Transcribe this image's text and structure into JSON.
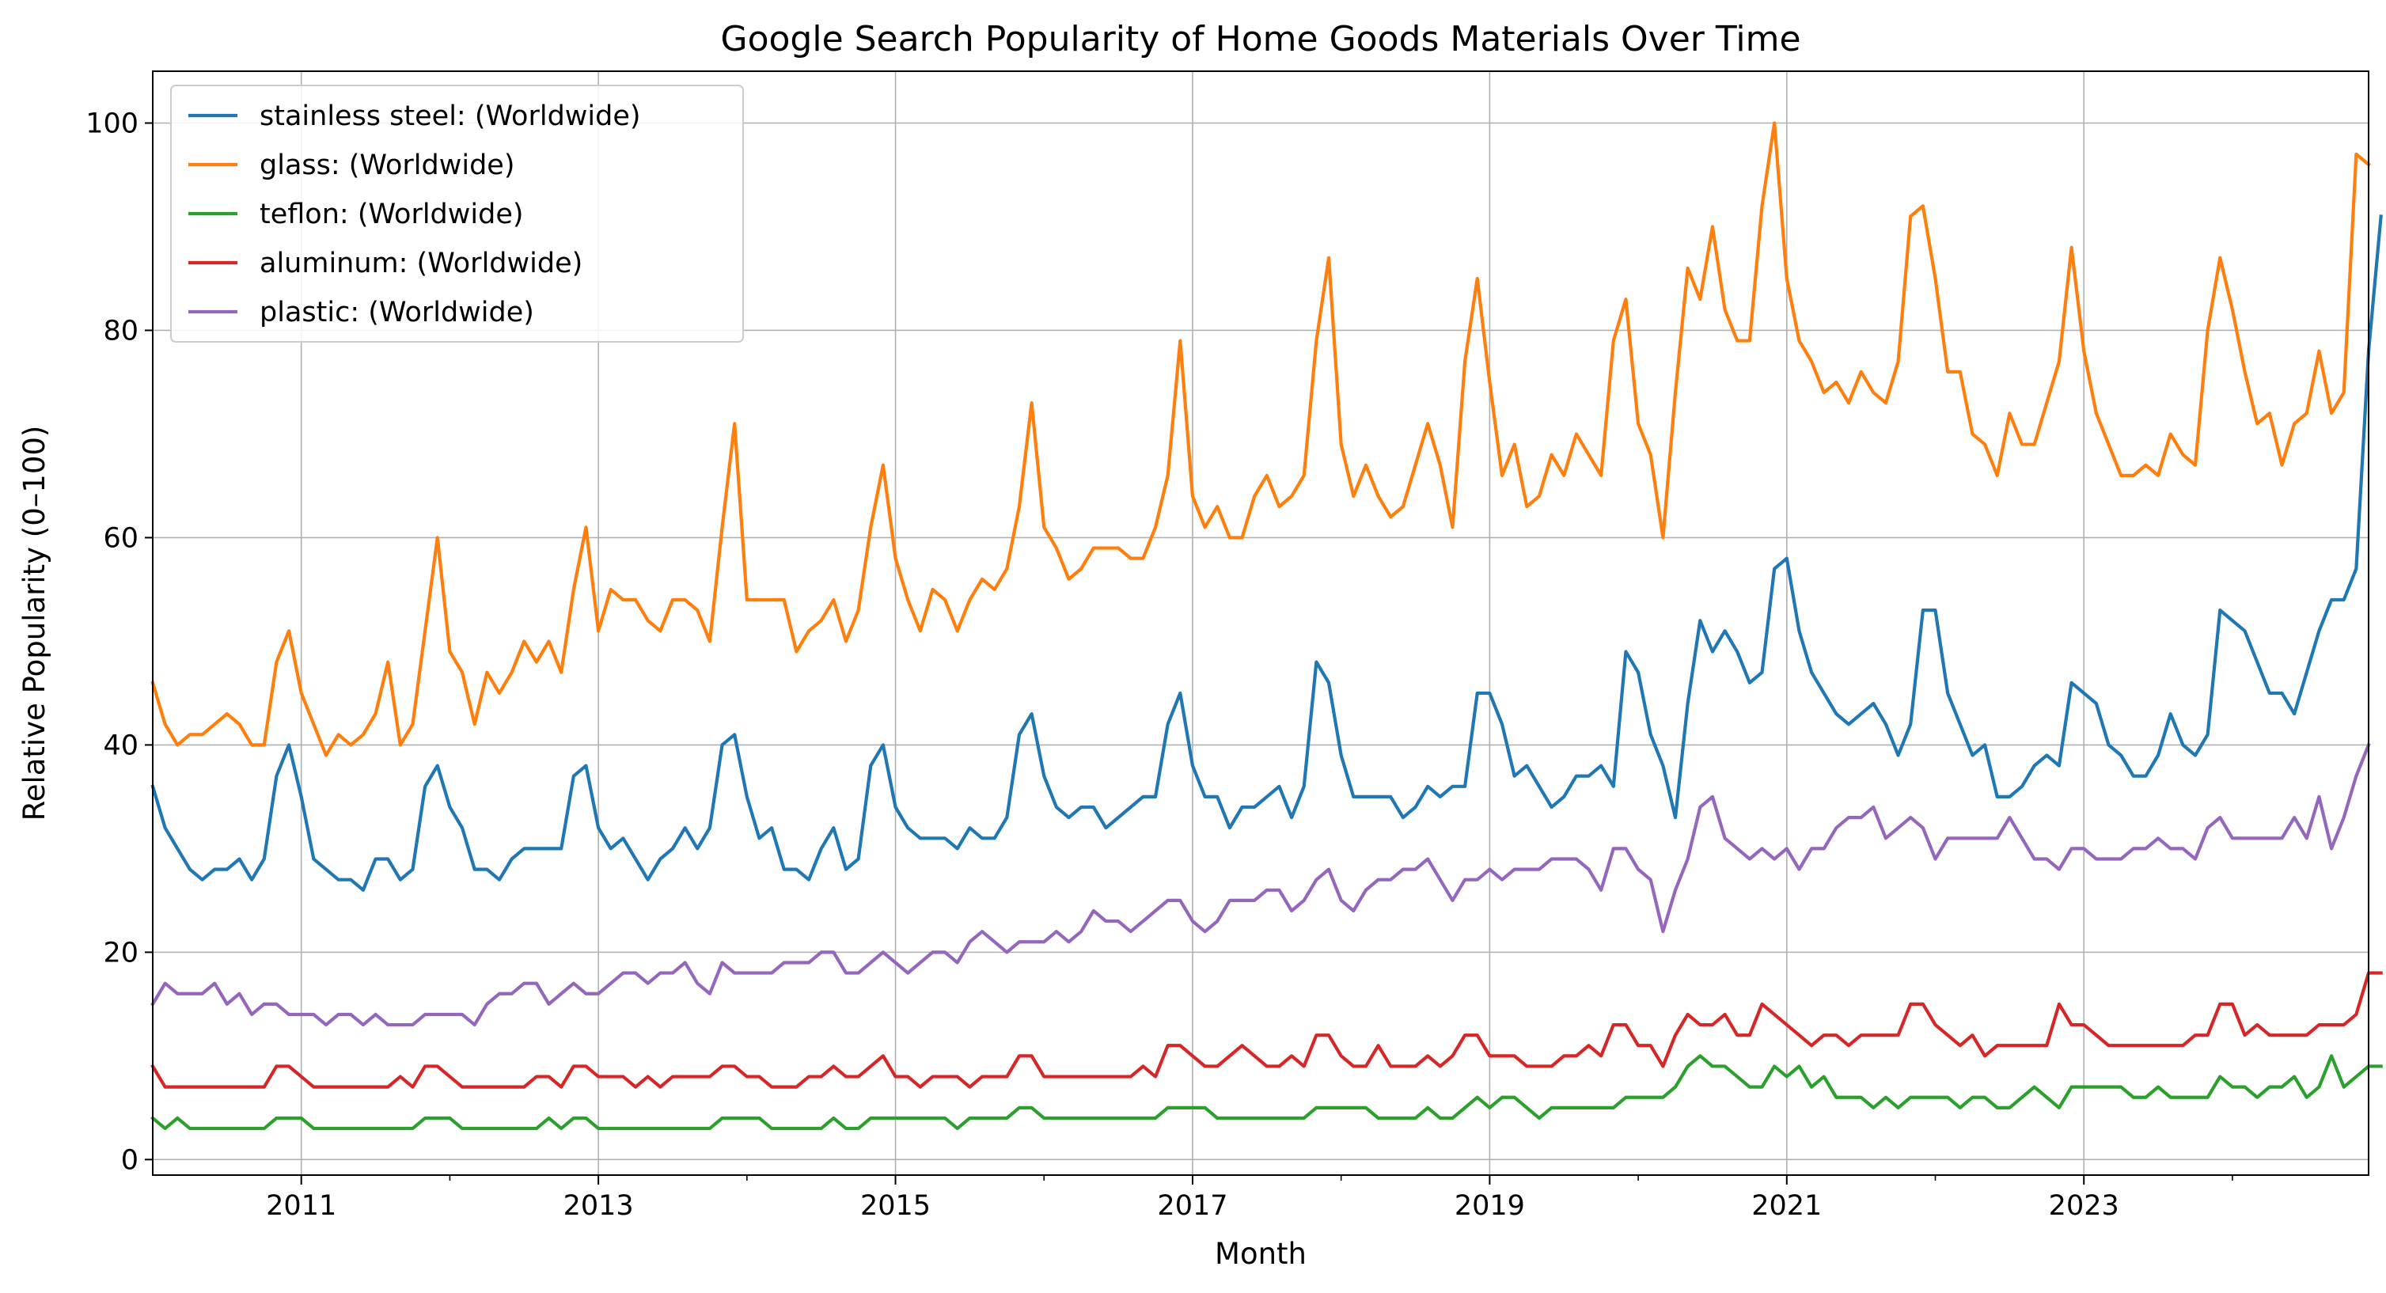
{
  "chart_data": {
    "type": "line",
    "title": "Google Search Popularity of Home Goods Materials Over Time",
    "xlabel": "Month",
    "ylabel": "Relative Popularity (0–100)",
    "xlim": [
      "2010-01",
      "2024-12"
    ],
    "ylim": [
      -1.5,
      105
    ],
    "grid": true,
    "legend_position": "upper-left",
    "x_ticks": [
      {
        "date": "2011-01",
        "label": "2011"
      },
      {
        "date": "2013-01",
        "label": "2013"
      },
      {
        "date": "2015-01",
        "label": "2015"
      },
      {
        "date": "2017-01",
        "label": "2017"
      },
      {
        "date": "2019-01",
        "label": "2019"
      },
      {
        "date": "2021-01",
        "label": "2021"
      },
      {
        "date": "2023-01",
        "label": "2023"
      }
    ],
    "x_minor_ticks": [
      "2012-01",
      "2014-01",
      "2016-01",
      "2018-01",
      "2020-01",
      "2022-01",
      "2024-01"
    ],
    "y_ticks": [
      0,
      20,
      40,
      60,
      80,
      100
    ],
    "x_start": "2010-01",
    "series": [
      {
        "name": "stainless steel: (Worldwide)",
        "color": "#1f77b4",
        "values": [
          36,
          32,
          30,
          28,
          27,
          28,
          28,
          29,
          27,
          29,
          37,
          40,
          35,
          29,
          28,
          27,
          27,
          26,
          29,
          29,
          27,
          28,
          36,
          38,
          34,
          32,
          28,
          28,
          27,
          29,
          30,
          30,
          30,
          30,
          37,
          38,
          32,
          30,
          31,
          29,
          27,
          29,
          30,
          32,
          30,
          32,
          40,
          41,
          35,
          31,
          32,
          28,
          28,
          27,
          30,
          32,
          28,
          29,
          38,
          40,
          34,
          32,
          31,
          31,
          31,
          30,
          32,
          31,
          31,
          33,
          41,
          43,
          37,
          34,
          33,
          34,
          34,
          32,
          33,
          34,
          35,
          35,
          42,
          45,
          38,
          35,
          35,
          32,
          34,
          34,
          35,
          36,
          33,
          36,
          48,
          46,
          39,
          35,
          35,
          35,
          35,
          33,
          34,
          36,
          35,
          36,
          36,
          45,
          45,
          42,
          37,
          38,
          36,
          34,
          35,
          37,
          37,
          38,
          36,
          49,
          47,
          41,
          38,
          33,
          44,
          52,
          49,
          51,
          49,
          46,
          47,
          57,
          58,
          51,
          47,
          45,
          43,
          42,
          43,
          44,
          42,
          39,
          42,
          53,
          53,
          45,
          42,
          39,
          40,
          35,
          35,
          36,
          38,
          39,
          38,
          46,
          45,
          44,
          40,
          39,
          37,
          37,
          39,
          43,
          40,
          39,
          41,
          53,
          52,
          51,
          48,
          45,
          45,
          43,
          47,
          51,
          54,
          54,
          57,
          78,
          91
        ]
      },
      {
        "name": "glass: (Worldwide)",
        "color": "#ff7f0e",
        "values": [
          46,
          42,
          40,
          41,
          41,
          42,
          43,
          42,
          40,
          40,
          48,
          51,
          45,
          42,
          39,
          41,
          40,
          41,
          43,
          48,
          40,
          42,
          51,
          60,
          49,
          47,
          42,
          47,
          45,
          47,
          50,
          48,
          50,
          47,
          55,
          61,
          51,
          55,
          54,
          54,
          52,
          51,
          54,
          54,
          53,
          50,
          61,
          71,
          54,
          54,
          54,
          54,
          49,
          51,
          52,
          54,
          50,
          53,
          61,
          67,
          58,
          54,
          51,
          55,
          54,
          51,
          54,
          56,
          55,
          57,
          63,
          73,
          61,
          59,
          56,
          57,
          59,
          59,
          59,
          58,
          58,
          61,
          66,
          79,
          64,
          61,
          63,
          60,
          60,
          64,
          66,
          63,
          64,
          66,
          79,
          87,
          69,
          64,
          67,
          64,
          62,
          63,
          67,
          71,
          67,
          61,
          77,
          85,
          75,
          66,
          69,
          63,
          64,
          68,
          66,
          70,
          68,
          66,
          79,
          83,
          71,
          68,
          60,
          74,
          86,
          83,
          90,
          82,
          79,
          79,
          92,
          100,
          85,
          79,
          77,
          74,
          75,
          73,
          76,
          74,
          73,
          77,
          91,
          92,
          85,
          76,
          76,
          70,
          69,
          66,
          72,
          69,
          69,
          73,
          77,
          88,
          78,
          72,
          69,
          66,
          66,
          67,
          66,
          70,
          68,
          67,
          80,
          87,
          82,
          76,
          71,
          72,
          67,
          71,
          72,
          78,
          72,
          74,
          97,
          96
        ]
      },
      {
        "name": "teflon: (Worldwide)",
        "color": "#2ca02c",
        "values": [
          4,
          3,
          4,
          3,
          3,
          3,
          3,
          3,
          3,
          3,
          4,
          4,
          4,
          3,
          3,
          3,
          3,
          3,
          3,
          3,
          3,
          3,
          4,
          4,
          4,
          3,
          3,
          3,
          3,
          3,
          3,
          3,
          4,
          3,
          4,
          4,
          3,
          3,
          3,
          3,
          3,
          3,
          3,
          3,
          3,
          3,
          4,
          4,
          4,
          4,
          3,
          3,
          3,
          3,
          3,
          4,
          3,
          3,
          4,
          4,
          4,
          4,
          4,
          4,
          4,
          3,
          4,
          4,
          4,
          4,
          5,
          5,
          4,
          4,
          4,
          4,
          4,
          4,
          4,
          4,
          4,
          4,
          5,
          5,
          5,
          5,
          4,
          4,
          4,
          4,
          4,
          4,
          4,
          4,
          5,
          5,
          5,
          5,
          5,
          4,
          4,
          4,
          4,
          5,
          4,
          4,
          5,
          6,
          5,
          6,
          6,
          5,
          4,
          5,
          5,
          5,
          5,
          5,
          5,
          6,
          6,
          6,
          6,
          7,
          9,
          10,
          9,
          9,
          8,
          7,
          7,
          9,
          8,
          9,
          7,
          8,
          6,
          6,
          6,
          5,
          6,
          5,
          6,
          6,
          6,
          6,
          5,
          6,
          6,
          5,
          5,
          6,
          7,
          6,
          5,
          7,
          7,
          7,
          7,
          7,
          6,
          6,
          7,
          6,
          6,
          6,
          6,
          8,
          7,
          7,
          6,
          7,
          7,
          8,
          6,
          7,
          10,
          7,
          8,
          9,
          9
        ]
      },
      {
        "name": "aluminum: (Worldwide)",
        "color": "#d62728",
        "values": [
          9,
          7,
          7,
          7,
          7,
          7,
          7,
          7,
          7,
          7,
          9,
          9,
          8,
          7,
          7,
          7,
          7,
          7,
          7,
          7,
          8,
          7,
          9,
          9,
          8,
          7,
          7,
          7,
          7,
          7,
          7,
          8,
          8,
          7,
          9,
          9,
          8,
          8,
          8,
          7,
          8,
          7,
          8,
          8,
          8,
          8,
          9,
          9,
          8,
          8,
          7,
          7,
          7,
          8,
          8,
          9,
          8,
          8,
          9,
          10,
          8,
          8,
          7,
          8,
          8,
          8,
          7,
          8,
          8,
          8,
          10,
          10,
          8,
          8,
          8,
          8,
          8,
          8,
          8,
          8,
          9,
          8,
          11,
          11,
          10,
          9,
          9,
          10,
          11,
          10,
          9,
          9,
          10,
          9,
          12,
          12,
          10,
          9,
          9,
          11,
          9,
          9,
          9,
          10,
          9,
          10,
          12,
          12,
          10,
          10,
          10,
          9,
          9,
          9,
          10,
          10,
          11,
          10,
          13,
          13,
          11,
          11,
          9,
          12,
          14,
          13,
          13,
          14,
          12,
          12,
          15,
          14,
          13,
          12,
          11,
          12,
          12,
          11,
          12,
          12,
          12,
          12,
          15,
          15,
          13,
          12,
          11,
          12,
          10,
          11,
          11,
          11,
          11,
          11,
          15,
          13,
          13,
          12,
          11,
          11,
          11,
          11,
          11,
          11,
          11,
          12,
          12,
          15,
          15,
          12,
          13,
          12,
          12,
          12,
          12,
          13,
          13,
          13,
          14,
          18,
          18
        ]
      },
      {
        "name": "plastic: (Worldwide)",
        "color": "#9467bd",
        "values": [
          15,
          17,
          16,
          16,
          16,
          17,
          15,
          16,
          14,
          15,
          15,
          14,
          14,
          14,
          13,
          14,
          14,
          13,
          14,
          13,
          13,
          13,
          14,
          14,
          14,
          14,
          13,
          15,
          16,
          16,
          17,
          17,
          15,
          16,
          17,
          16,
          16,
          17,
          18,
          18,
          17,
          18,
          18,
          19,
          17,
          16,
          19,
          18,
          18,
          18,
          18,
          19,
          19,
          19,
          20,
          20,
          18,
          18,
          19,
          20,
          19,
          18,
          19,
          20,
          20,
          19,
          21,
          22,
          21,
          20,
          21,
          21,
          21,
          22,
          21,
          22,
          24,
          23,
          23,
          22,
          23,
          24,
          25,
          25,
          23,
          22,
          23,
          25,
          25,
          25,
          26,
          26,
          24,
          25,
          27,
          28,
          25,
          24,
          26,
          27,
          27,
          28,
          28,
          29,
          27,
          25,
          27,
          27,
          28,
          27,
          28,
          28,
          28,
          29,
          29,
          29,
          28,
          26,
          30,
          30,
          28,
          27,
          22,
          26,
          29,
          34,
          35,
          31,
          30,
          29,
          30,
          29,
          30,
          28,
          30,
          30,
          32,
          33,
          33,
          34,
          31,
          32,
          33,
          32,
          29,
          31,
          31,
          31,
          31,
          31,
          33,
          31,
          29,
          29,
          28,
          30,
          30,
          29,
          29,
          29,
          30,
          30,
          31,
          30,
          30,
          29,
          32,
          33,
          31,
          31,
          31,
          31,
          31,
          33,
          31,
          35,
          30,
          33,
          37,
          40
        ]
      }
    ]
  }
}
